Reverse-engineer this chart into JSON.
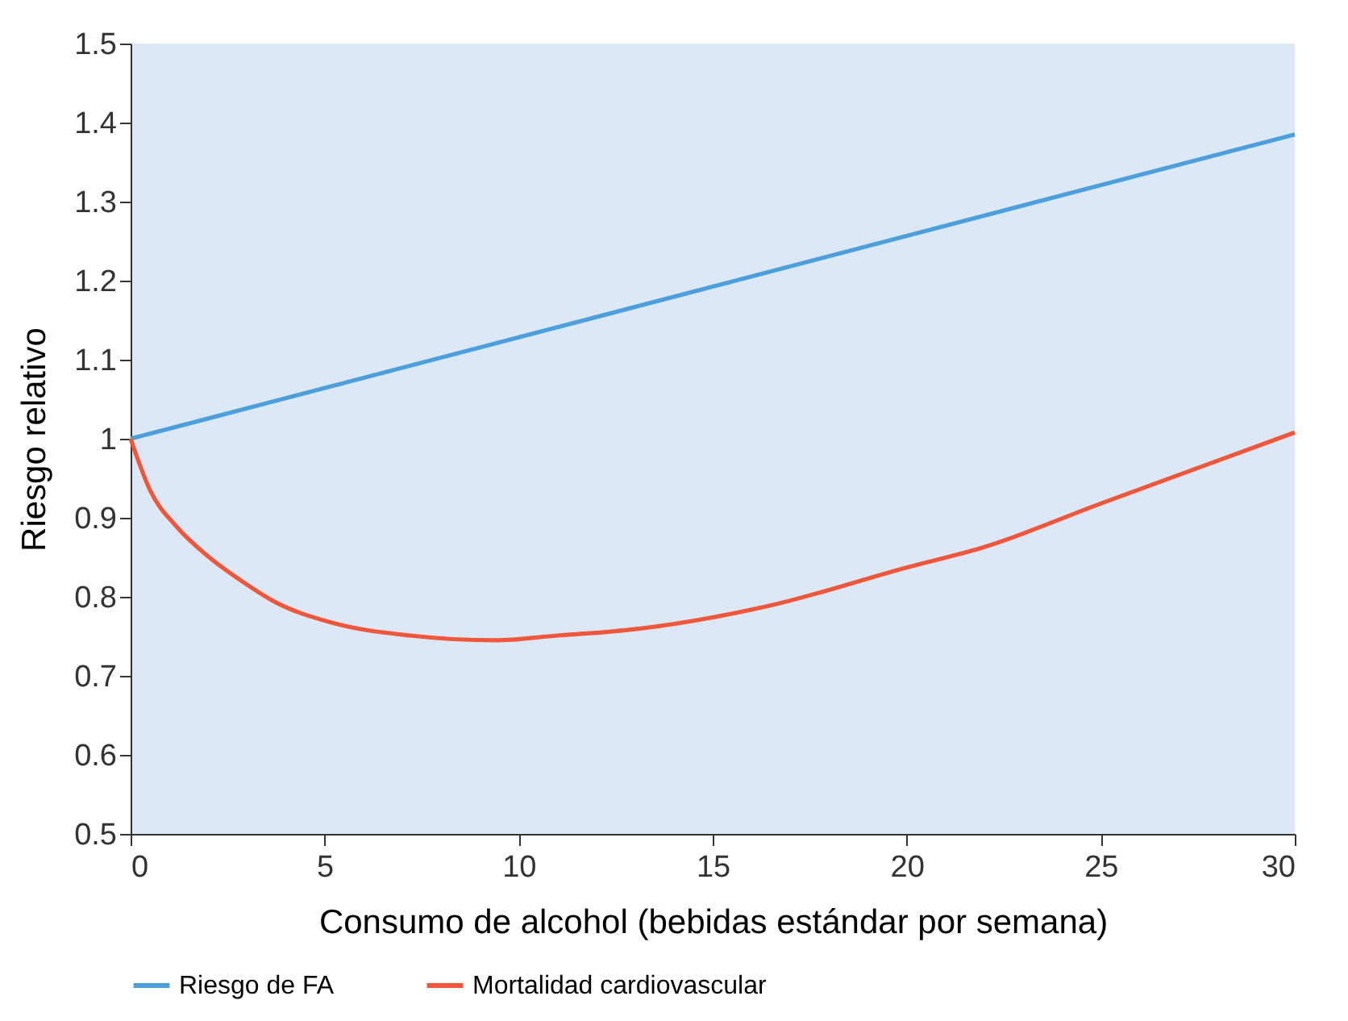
{
  "chart_data": {
    "type": "line",
    "xlabel": "Consumo de alcohol (bebidas estándar por semana)",
    "ylabel": "Riesgo relativo",
    "xlim": [
      0,
      30
    ],
    "xticks": [
      0,
      5,
      10,
      15,
      20,
      25,
      30
    ],
    "ylim": [
      0.5,
      1.5
    ],
    "yticks": [
      0.5,
      0.6,
      0.7,
      0.8,
      0.9,
      1,
      1.1,
      1.2,
      1.3,
      1.4,
      1.5
    ],
    "grid": false,
    "legend": "bottom",
    "line_style": "solid",
    "marker": "none",
    "series": [
      {
        "name": "Riesgo de FA",
        "color": "#4a9fdc",
        "x": [
          0,
          30
        ],
        "values": [
          1,
          1.385
        ]
      },
      {
        "name": "Mortalidad cardiovascular",
        "color": "#f0573a",
        "x": [
          0,
          0.5,
          1.2,
          2,
          2.8,
          3.7,
          5.2,
          7.2,
          9.4,
          11,
          13,
          16.4,
          20,
          22,
          25,
          30
        ],
        "values": [
          1,
          0.935,
          0.888,
          0.851,
          0.822,
          0.794,
          0.767,
          0.751,
          0.745,
          0.751,
          0.759,
          0.788,
          0.837,
          0.863,
          0.918,
          1.008
        ]
      }
    ]
  }
}
